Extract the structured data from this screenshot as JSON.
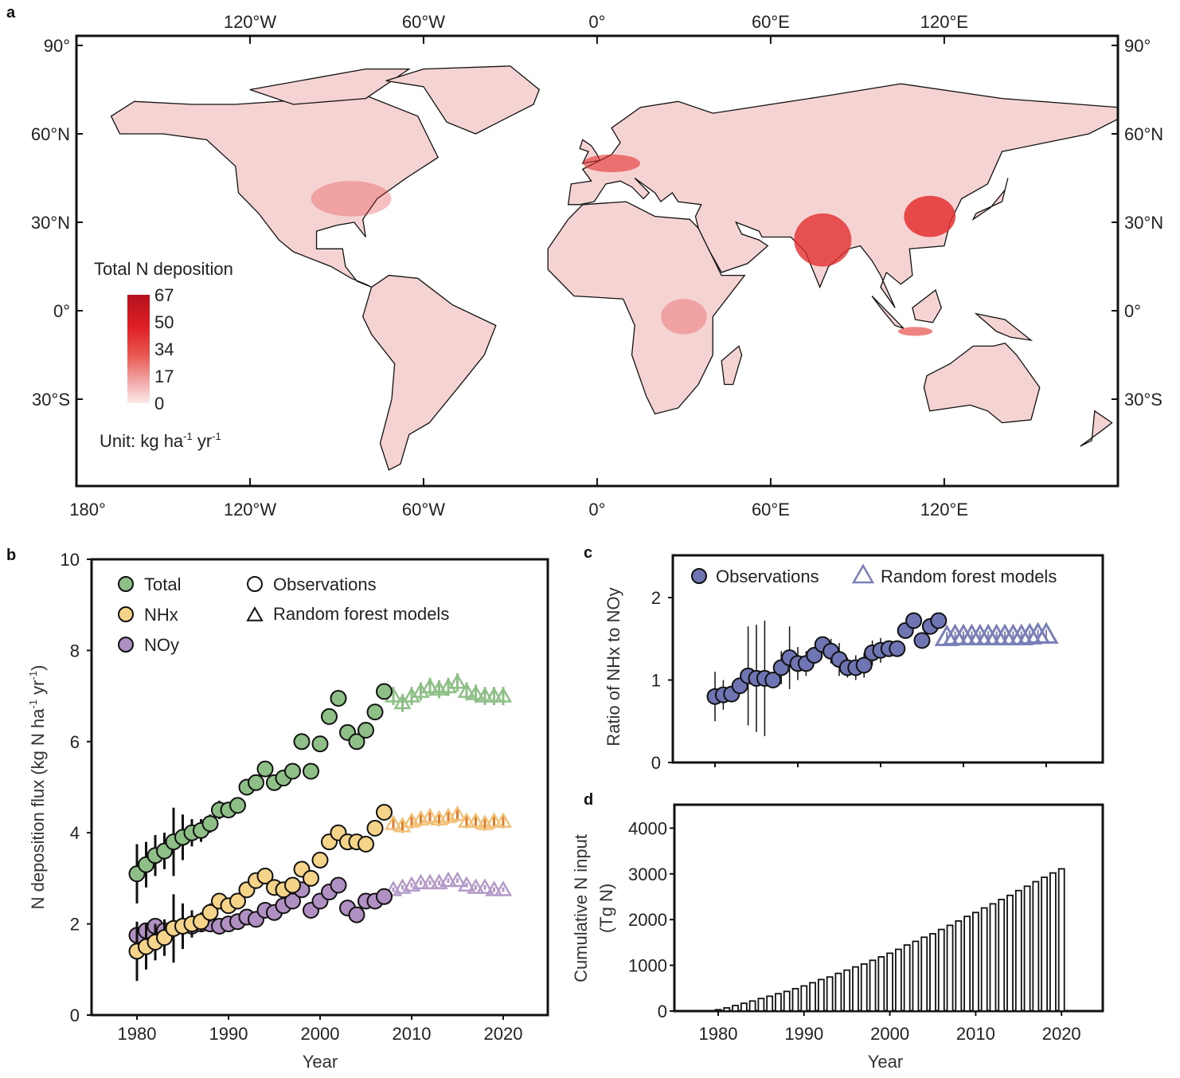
{
  "panels": {
    "a": "a",
    "b": "b",
    "c": "c",
    "d": "d"
  },
  "map": {
    "top_lon_labels": [
      "120°W",
      "60°W",
      "0°",
      "60°E",
      "120°E"
    ],
    "top_lon_values": [
      -120,
      -60,
      0,
      60,
      120
    ],
    "bottom_lon_labels": [
      "180°",
      "120°W",
      "60°W",
      "0°",
      "60°E",
      "120°E"
    ],
    "bottom_lon_values": [
      -180,
      -120,
      -60,
      0,
      60,
      120
    ],
    "lat_labels": [
      "90°",
      "60°N",
      "30°N",
      "0°",
      "30°S"
    ],
    "lat_values": [
      90,
      60,
      30,
      0,
      -30
    ],
    "legend_title": "Total N deposition",
    "colorbar_ticks": [
      "67",
      "50",
      "34",
      "17",
      "0"
    ],
    "colorbar_colors": [
      "#b3121e",
      "#e01f26",
      "#e8554f",
      "#f2a8a8",
      "#fbeaea"
    ],
    "unit_prefix": "Unit: kg ha",
    "unit_exp1": "-1",
    "unit_mid": " yr",
    "unit_exp2": "-1",
    "land_color": "#f5d3d3",
    "hotspot_color": "#e3302f"
  },
  "chart_data": [
    {
      "id": "b",
      "type": "scatter",
      "xlabel": "Year",
      "ylabel": "N deposition flux (kg N ha-1 yr-1)",
      "ylabel_parts": [
        "N deposition flux (kg N ha",
        "-1",
        " yr",
        "-1",
        ")"
      ],
      "xlim": [
        1975,
        2025
      ],
      "ylim": [
        0,
        10
      ],
      "xticks": [
        1980,
        1990,
        2000,
        2010,
        2020
      ],
      "yticks": [
        0,
        2,
        4,
        6,
        8,
        10
      ],
      "legend": {
        "series_labels": [
          "Total",
          "NHx",
          "NOy"
        ],
        "marker_labels": [
          "Observations",
          "Random forest models"
        ]
      },
      "obs_years": [
        1980,
        1981,
        1982,
        1983,
        1984,
        1985,
        1986,
        1987,
        1988,
        1989,
        1990,
        1991,
        1992,
        1993,
        1994,
        1995,
        1996,
        1997,
        1998,
        1999,
        2000,
        2001,
        2002,
        2003,
        2004,
        2005,
        2006,
        2007
      ],
      "model_years": [
        2008,
        2009,
        2010,
        2011,
        2012,
        2013,
        2014,
        2015,
        2016,
        2017,
        2018,
        2019,
        2020
      ],
      "series": [
        {
          "name": "Total",
          "color": "#8dbf86",
          "model_color": "#8dbf86",
          "err_color": "#8dbf86",
          "obs": [
            3.1,
            3.3,
            3.5,
            3.6,
            3.8,
            3.9,
            4.0,
            4.05,
            4.2,
            4.5,
            4.5,
            4.6,
            5.0,
            5.1,
            5.4,
            5.1,
            5.2,
            5.35,
            6.0,
            5.35,
            5.95,
            6.55,
            6.95,
            6.2,
            6.0,
            6.25,
            6.65,
            7.1
          ],
          "obs_err": [
            0.65,
            0.5,
            0.45,
            0.4,
            0.75,
            0.5,
            0.3,
            0.25,
            0.2,
            0.2,
            0.15,
            0.15,
            0.15,
            0.15,
            0.15,
            0.15,
            0.15,
            0.15,
            0.15,
            0.15,
            0.15,
            0.15,
            0.15,
            0.15,
            0.15,
            0.15,
            0.15,
            0.15
          ],
          "model": [
            7.0,
            6.85,
            7.0,
            7.1,
            7.2,
            7.15,
            7.2,
            7.3,
            7.1,
            7.05,
            7.0,
            7.0,
            7.0
          ],
          "model_err": 0.2
        },
        {
          "name": "NHx",
          "color": "#f5d48a",
          "model_color": "#f2c279",
          "err_color": "#e07b2a",
          "obs": [
            1.4,
            1.5,
            1.6,
            1.7,
            1.9,
            1.95,
            2.0,
            2.05,
            2.25,
            2.5,
            2.4,
            2.5,
            2.75,
            2.95,
            3.05,
            2.8,
            2.75,
            2.85,
            3.2,
            3.0,
            3.4,
            3.8,
            4.0,
            3.8,
            3.8,
            3.75,
            4.1,
            4.45
          ],
          "obs_err": [
            0.65,
            0.5,
            0.4,
            0.4,
            0.75,
            0.5,
            0.3,
            0.2,
            0.2,
            0.15,
            0.15,
            0.15,
            0.15,
            0.15,
            0.15,
            0.15,
            0.15,
            0.15,
            0.15,
            0.15,
            0.15,
            0.15,
            0.15,
            0.15,
            0.15,
            0.15,
            0.15,
            0.15
          ],
          "model": [
            4.2,
            4.15,
            4.25,
            4.3,
            4.35,
            4.3,
            4.35,
            4.4,
            4.25,
            4.25,
            4.2,
            4.25,
            4.25
          ],
          "model_err": 0.15
        },
        {
          "name": "NOy",
          "color": "#b08fc2",
          "model_color": "#b49ac8",
          "err_color": "#b49ac8",
          "obs": [
            1.75,
            1.85,
            1.95,
            1.85,
            1.9,
            1.95,
            1.95,
            2.0,
            2.0,
            1.95,
            2.0,
            2.05,
            2.15,
            2.1,
            2.3,
            2.25,
            2.4,
            2.5,
            2.75,
            2.3,
            2.5,
            2.7,
            2.85,
            2.35,
            2.2,
            2.5,
            2.5,
            2.6
          ],
          "obs_err": [
            0.15,
            0.15,
            0.15,
            0.15,
            0.1,
            0.1,
            0.1,
            0.1,
            0.1,
            0.1,
            0.1,
            0.1,
            0.1,
            0.1,
            0.1,
            0.1,
            0.1,
            0.1,
            0.1,
            0.1,
            0.1,
            0.1,
            0.1,
            0.1,
            0.1,
            0.1,
            0.1,
            0.1
          ],
          "model": [
            2.75,
            2.8,
            2.85,
            2.9,
            2.9,
            2.9,
            2.95,
            2.95,
            2.85,
            2.8,
            2.8,
            2.75,
            2.75
          ],
          "model_err": 0.05
        }
      ]
    },
    {
      "id": "c",
      "type": "scatter",
      "ylabel": "Ratio of NHx to NOy",
      "ylim": [
        0,
        2.4
      ],
      "yticks": [
        0,
        1,
        2
      ],
      "xticks": [
        1980,
        1990,
        2000,
        2010,
        2020
      ],
      "legend": [
        "Observations",
        "Random forest models"
      ],
      "color": "#6f74b3",
      "model_color": "#7a7fb8",
      "obs_years": [
        1980,
        1981,
        1982,
        1983,
        1984,
        1985,
        1986,
        1987,
        1988,
        1989,
        1990,
        1991,
        1992,
        1993,
        1994,
        1995,
        1996,
        1997,
        1998,
        1999,
        2000,
        2001,
        2002,
        2003,
        2004,
        2005,
        2006,
        2007
      ],
      "obs": [
        0.8,
        0.82,
        0.83,
        0.93,
        1.05,
        1.02,
        1.02,
        1.0,
        1.15,
        1.27,
        1.2,
        1.2,
        1.3,
        1.43,
        1.35,
        1.25,
        1.15,
        1.15,
        1.18,
        1.33,
        1.36,
        1.38,
        1.38,
        1.6,
        1.72,
        1.48,
        1.65,
        1.72
      ],
      "obs_err": [
        0.3,
        0.18,
        0.1,
        0.1,
        0.6,
        0.65,
        0.7,
        0.1,
        0.2,
        0.38,
        0.2,
        0.15,
        0.1,
        0.1,
        0.15,
        0.2,
        0.12,
        0.15,
        0.15,
        0.15,
        0.15,
        0.1,
        0.1,
        0.08,
        0.05,
        0.05,
        0.1,
        0.05
      ],
      "model_years": [
        2008,
        2009,
        2010,
        2011,
        2012,
        2013,
        2014,
        2015,
        2016,
        2017,
        2018,
        2019,
        2020
      ],
      "model": [
        1.52,
        1.53,
        1.53,
        1.53,
        1.53,
        1.53,
        1.53,
        1.53,
        1.53,
        1.53,
        1.54,
        1.55,
        1.55
      ]
    },
    {
      "id": "d",
      "type": "bar",
      "xlabel": "Year",
      "ylabel_lines": [
        "Cumulative N input",
        "(Tg N)"
      ],
      "ylim": [
        0,
        4500
      ],
      "yticks": [
        0,
        1000,
        2000,
        3000,
        4000
      ],
      "xticks": [
        1980,
        1990,
        2000,
        2010,
        2020
      ],
      "categories": [
        1980,
        1981,
        1982,
        1983,
        1984,
        1985,
        1986,
        1987,
        1988,
        1989,
        1990,
        1991,
        1992,
        1993,
        1994,
        1995,
        1996,
        1997,
        1998,
        1999,
        2000,
        2001,
        2002,
        2003,
        2004,
        2005,
        2006,
        2007,
        2008,
        2009,
        2010,
        2011,
        2012,
        2013,
        2014,
        2015,
        2016,
        2017,
        2018,
        2019,
        2020
      ],
      "values": [
        30,
        70,
        120,
        170,
        220,
        275,
        325,
        380,
        430,
        490,
        550,
        620,
        690,
        745,
        825,
        895,
        965,
        1030,
        1110,
        1185,
        1265,
        1350,
        1445,
        1525,
        1615,
        1690,
        1785,
        1875,
        1970,
        2070,
        2155,
        2255,
        2345,
        2440,
        2530,
        2635,
        2730,
        2830,
        2925,
        3020,
        3110
      ]
    }
  ]
}
